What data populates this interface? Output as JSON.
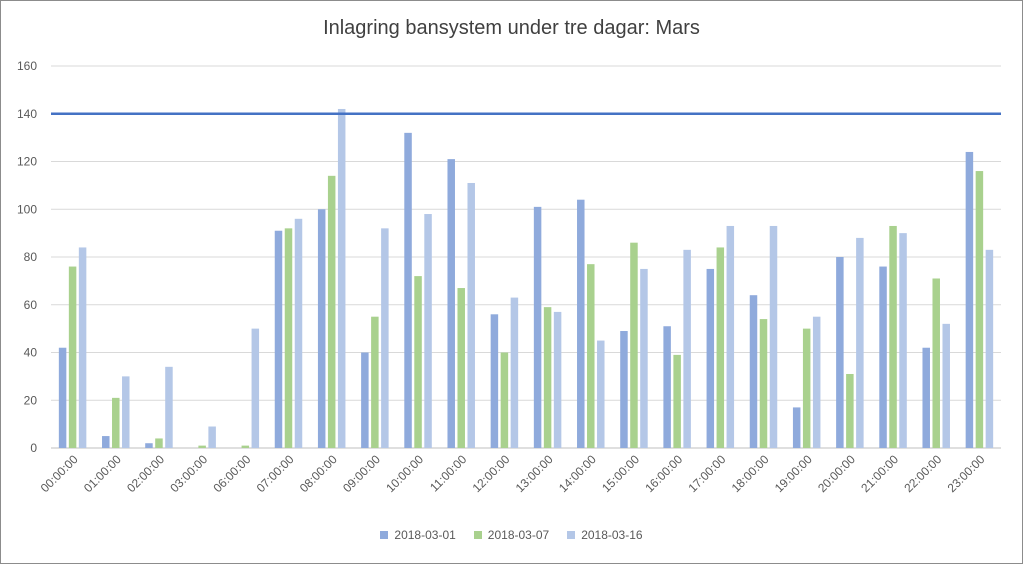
{
  "chart_data": {
    "type": "bar",
    "title": "Inlagring bansystem under tre dagar: Mars",
    "xlabel": "",
    "ylabel": "",
    "ylim": [
      0,
      160
    ],
    "yticks": [
      0,
      20,
      40,
      60,
      80,
      100,
      120,
      140,
      160
    ],
    "grid": true,
    "legend_position": "bottom",
    "categories": [
      "00:00:00",
      "01:00:00",
      "02:00:00",
      "03:00:00",
      "06:00:00",
      "07:00:00",
      "08:00:00",
      "09:00:00",
      "10:00:00",
      "11:00:00",
      "12:00:00",
      "13:00:00",
      "14:00:00",
      "15:00:00",
      "16:00:00",
      "17:00:00",
      "18:00:00",
      "19:00:00",
      "20:00:00",
      "21:00:00",
      "22:00:00",
      "23:00:00"
    ],
    "series": [
      {
        "name": "2018-03-01",
        "color": "#8faadc",
        "values": [
          42,
          5,
          2,
          0,
          0,
          91,
          100,
          40,
          132,
          121,
          56,
          101,
          104,
          49,
          51,
          75,
          64,
          17,
          80,
          76,
          42,
          124
        ]
      },
      {
        "name": "2018-03-07",
        "color": "#a9d18e",
        "values": [
          76,
          21,
          4,
          1,
          1,
          92,
          114,
          55,
          72,
          67,
          40,
          59,
          77,
          86,
          39,
          84,
          54,
          50,
          31,
          93,
          71,
          116
        ]
      },
      {
        "name": "2018-03-16",
        "color": "#b4c7e7",
        "values": [
          84,
          30,
          34,
          9,
          50,
          96,
          142,
          92,
          98,
          111,
          63,
          57,
          45,
          75,
          83,
          93,
          93,
          55,
          88,
          90,
          52,
          83
        ]
      }
    ],
    "reference_line": {
      "value": 140,
      "color": "#4472c4"
    }
  }
}
